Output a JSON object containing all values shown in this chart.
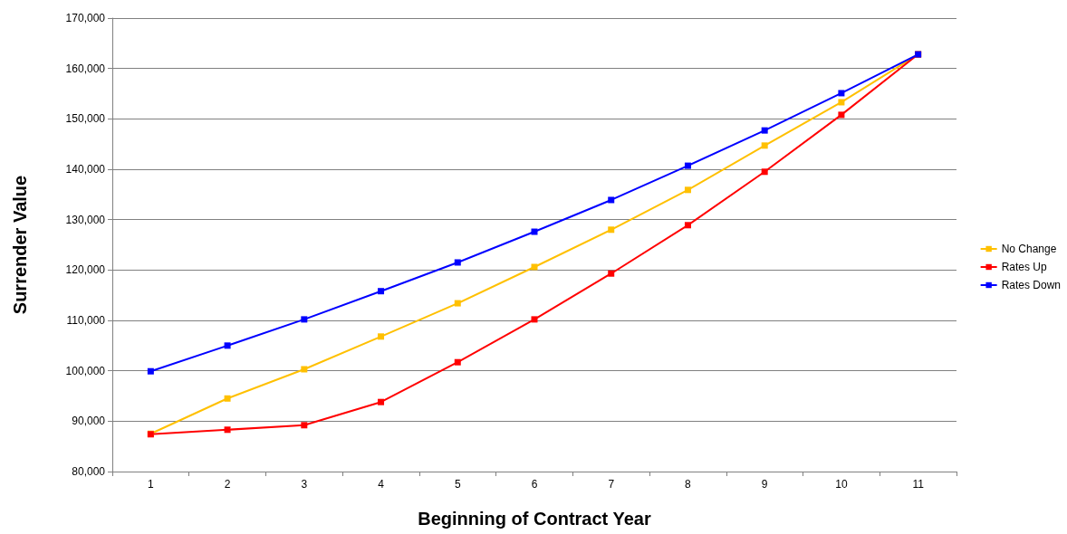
{
  "chart_data": {
    "type": "line",
    "xlabel": "Beginning of Contract Year",
    "ylabel": "Surrender Value",
    "categories": [
      "1",
      "2",
      "3",
      "4",
      "5",
      "6",
      "7",
      "8",
      "9",
      "10",
      "11"
    ],
    "series": [
      {
        "name": "No Change",
        "color": "#ffc000",
        "values": [
          87500,
          94500,
          100300,
          106800,
          113400,
          120600,
          128000,
          135900,
          144700,
          153300,
          162800
        ]
      },
      {
        "name": "Rates Up",
        "color": "#ff0000",
        "values": [
          87400,
          88300,
          89200,
          93800,
          101700,
          110200,
          119300,
          128900,
          139500,
          150800,
          162800
        ]
      },
      {
        "name": "Rates Down",
        "color": "#0000ff",
        "values": [
          99900,
          105000,
          110200,
          115800,
          121500,
          127600,
          133900,
          140700,
          147700,
          155100,
          162800
        ]
      }
    ],
    "ylim": [
      80000,
      170000
    ],
    "yticks": [
      {
        "value": 80000,
        "label": "80,000"
      },
      {
        "value": 90000,
        "label": "90,000"
      },
      {
        "value": 100000,
        "label": "100,000"
      },
      {
        "value": 110000,
        "label": "110,000"
      },
      {
        "value": 120000,
        "label": "120,000"
      },
      {
        "value": 130000,
        "label": "130,000"
      },
      {
        "value": 140000,
        "label": "140,000"
      },
      {
        "value": 150000,
        "label": "150,000"
      },
      {
        "value": 160000,
        "label": "160,000"
      },
      {
        "value": 170000,
        "label": "170,000"
      }
    ],
    "grid": "y",
    "legend": "right",
    "marker": "square",
    "line_style": "solid"
  }
}
